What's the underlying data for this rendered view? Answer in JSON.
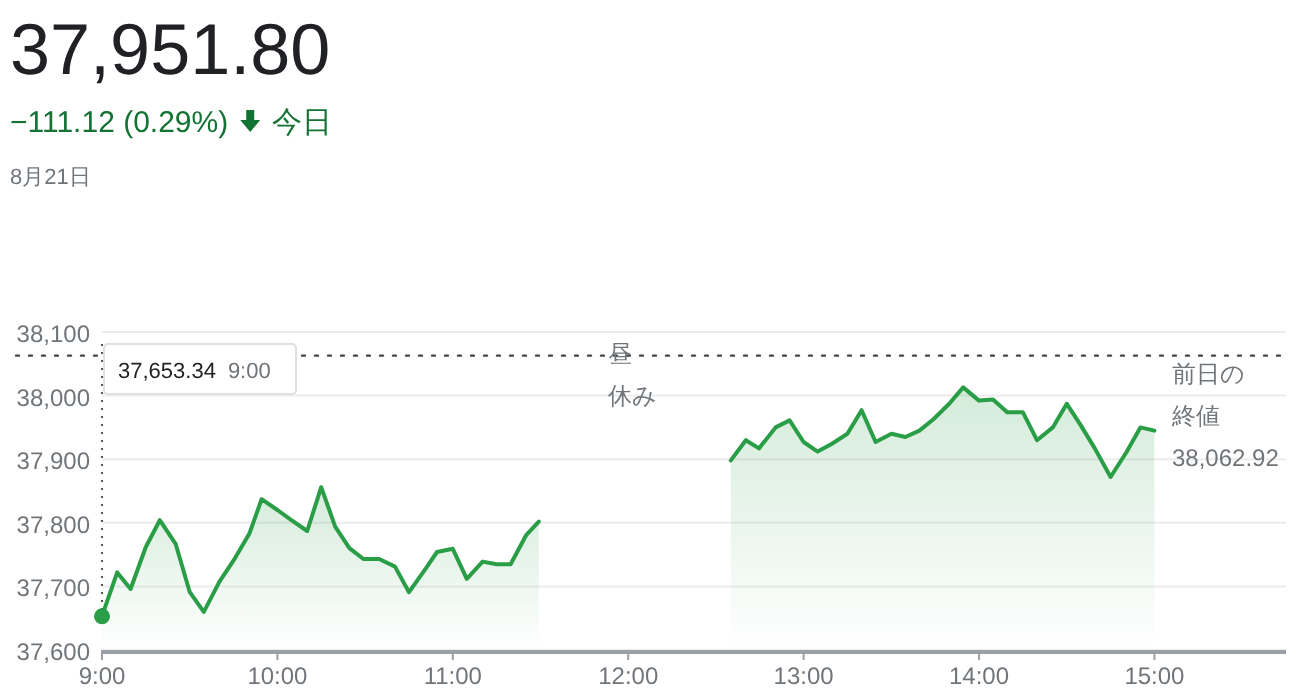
{
  "chart_data": {
    "type": "area",
    "title": "37,951.80",
    "subtitle": "−111.12 (0.29%)",
    "annotations": [
      "今日",
      "8月21日",
      "37,653.34",
      "9:00",
      "昼",
      "休み",
      "38,062.92"
    ],
    "series": [
      {
        "color": "#2a9d47",
        "x": [
          9.0,
          9.087,
          9.163,
          9.25,
          9.33,
          9.42,
          9.5,
          9.58,
          9.67,
          9.75,
          9.84,
          9.91,
          10.0,
          10.08,
          10.17,
          10.25,
          10.33,
          10.41,
          10.49,
          10.58,
          10.67,
          10.75,
          10.84,
          10.91,
          11.0,
          11.08,
          11.17,
          11.25,
          11.33,
          11.42,
          11.49
        ],
        "values": [
          37653,
          37722,
          37696,
          37762,
          37804,
          37767,
          37691,
          37660,
          37708,
          37741,
          37783,
          37837,
          37820,
          37804,
          37787,
          37856,
          37794,
          37760,
          37743,
          37743,
          37731,
          37691,
          37726,
          37754,
          37759,
          37712,
          37739,
          37735,
          37735,
          37781,
          37802
        ]
      },
      {
        "color": "#2a9d47",
        "x": [
          12.585,
          12.67,
          12.745,
          12.84,
          12.92,
          13.0,
          13.08,
          13.16,
          13.25,
          13.33,
          13.41,
          13.5,
          13.58,
          13.66,
          13.74,
          13.83,
          13.91,
          14.0,
          14.08,
          14.16,
          14.25,
          14.33,
          14.42,
          14.5,
          14.58,
          14.66,
          14.75,
          14.84,
          14.92,
          15.0
        ],
        "values": [
          37898,
          37930,
          37917,
          37950,
          37961,
          37927,
          37912,
          37924,
          37940,
          37977,
          37927,
          37940,
          37935,
          37945,
          37963,
          37987,
          38013,
          37992,
          37994,
          37974,
          37974,
          37930,
          37950,
          37987,
          37953,
          37917,
          37872,
          37911,
          37950,
          37945
        ]
      }
    ],
    "xlim": [
      9,
      15.75
    ],
    "xticks": [
      {
        "value": 9,
        "label": "9:00"
      },
      {
        "value": 10,
        "label": "10:00"
      },
      {
        "value": 11,
        "label": "11:00"
      },
      {
        "value": 12,
        "label": "12:00"
      },
      {
        "value": 13,
        "label": "13:00"
      },
      {
        "value": 14,
        "label": "14:00"
      },
      {
        "value": 15,
        "label": "15:00"
      }
    ],
    "ylim": [
      37600,
      38100
    ],
    "yticks": [
      {
        "value": 37600,
        "label": "37,600"
      },
      {
        "value": 37700,
        "label": "37,700"
      },
      {
        "value": 37800,
        "label": "37,800"
      },
      {
        "value": 37900,
        "label": "37,900"
      },
      {
        "value": 38000,
        "label": "38,000"
      },
      {
        "value": 38100,
        "label": "38,100"
      }
    ],
    "ref_lines": [
      {
        "axis": "y",
        "value": 38062.92,
        "label": "前日の終値",
        "color": "#444444",
        "line_style": "dotted"
      }
    ],
    "grid": "y"
  }
}
